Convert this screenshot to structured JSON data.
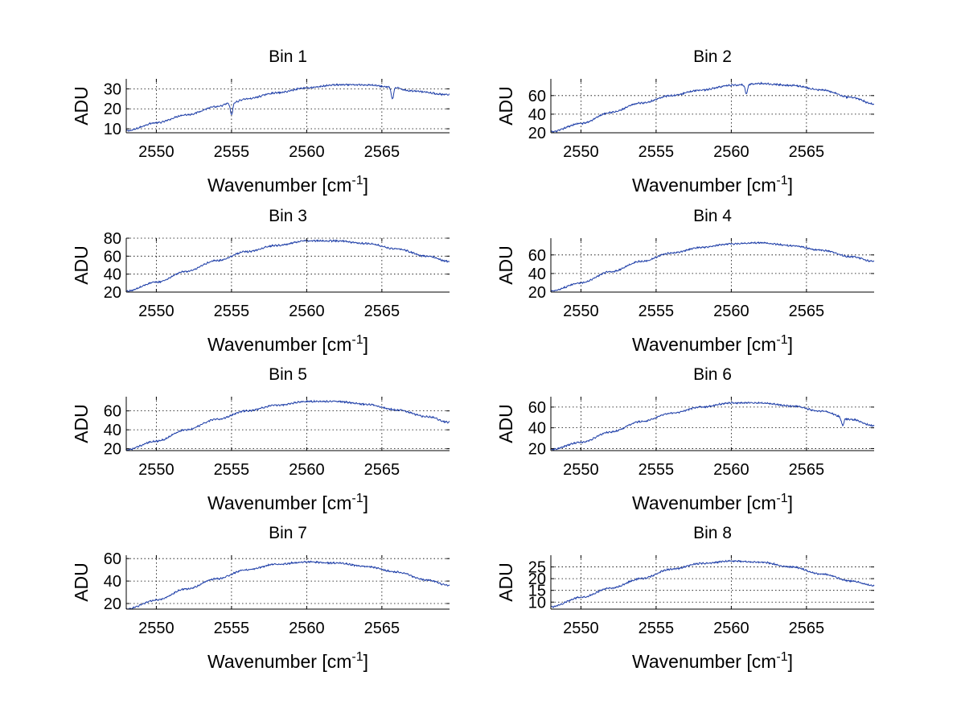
{
  "colors": {
    "line": "#1f3fa8",
    "axis": "#000000",
    "grid": "#000000",
    "background": "#ffffff"
  },
  "chart_data": [
    {
      "type": "line",
      "title": "Bin 1",
      "xlabel": "Wavenumber [cm",
      "xlabel_sup": "-1",
      "xlabel_end": "]",
      "ylabel": "ADU",
      "xlim": [
        2548,
        2569.5
      ],
      "ylim": [
        8,
        35
      ],
      "xticks": [
        2550,
        2555,
        2560,
        2565
      ],
      "yticks": [
        10,
        20,
        30
      ],
      "grid": true,
      "series": [
        {
          "name": "Bin 1",
          "x": [
            2548,
            2550,
            2552,
            2554,
            2555,
            2556,
            2558,
            2560,
            2562,
            2564,
            2565.5,
            2567,
            2569.5
          ],
          "values": [
            9,
            13,
            17,
            21,
            23,
            25,
            28,
            30.5,
            32,
            32,
            31,
            29,
            27
          ]
        }
      ],
      "dips": [
        {
          "x": 2555,
          "depth": 6
        },
        {
          "x": 2565.7,
          "depth": 6
        }
      ]
    },
    {
      "type": "line",
      "title": "Bin 2",
      "xlabel": "Wavenumber [cm",
      "xlabel_sup": "-1",
      "xlabel_end": "]",
      "ylabel": "ADU",
      "xlim": [
        2548,
        2569.5
      ],
      "ylim": [
        20,
        78
      ],
      "xticks": [
        2550,
        2555,
        2560,
        2565
      ],
      "yticks": [
        20,
        40,
        60
      ],
      "grid": true,
      "series": [
        {
          "name": "Bin 2",
          "x": [
            2548,
            2550,
            2552,
            2554,
            2556,
            2558,
            2560,
            2562,
            2564,
            2566,
            2568,
            2569.5
          ],
          "values": [
            21,
            30,
            42,
            52,
            60,
            66,
            71,
            73,
            71,
            66,
            58,
            51
          ]
        }
      ],
      "dips": [
        {
          "x": 2561,
          "depth": 10
        }
      ]
    },
    {
      "type": "line",
      "title": "Bin 3",
      "xlabel": "Wavenumber [cm",
      "xlabel_sup": "-1",
      "xlabel_end": "]",
      "ylabel": "ADU",
      "xlim": [
        2548,
        2569.5
      ],
      "ylim": [
        20,
        80
      ],
      "xticks": [
        2550,
        2555,
        2560,
        2565
      ],
      "yticks": [
        20,
        40,
        60,
        80
      ],
      "grid": true,
      "series": [
        {
          "name": "Bin 3",
          "x": [
            2548,
            2550,
            2552,
            2554,
            2556,
            2558,
            2560,
            2562,
            2564,
            2566,
            2568,
            2569.5
          ],
          "values": [
            21,
            31,
            43,
            55,
            65,
            72,
            77,
            77,
            74,
            68,
            60,
            54
          ]
        }
      ],
      "dips": []
    },
    {
      "type": "line",
      "title": "Bin 4",
      "xlabel": "Wavenumber [cm",
      "xlabel_sup": "-1",
      "xlabel_end": "]",
      "ylabel": "ADU",
      "xlim": [
        2548,
        2569.5
      ],
      "ylim": [
        20,
        78
      ],
      "xticks": [
        2550,
        2555,
        2560,
        2565
      ],
      "yticks": [
        20,
        40,
        60
      ],
      "grid": true,
      "series": [
        {
          "name": "Bin 4",
          "x": [
            2548,
            2550,
            2552,
            2554,
            2556,
            2558,
            2560,
            2562,
            2564,
            2566,
            2568,
            2569.5
          ],
          "values": [
            21,
            30,
            42,
            53,
            62,
            68,
            72,
            73,
            70,
            65,
            58,
            53
          ]
        }
      ],
      "dips": []
    },
    {
      "type": "line",
      "title": "Bin 5",
      "xlabel": "Wavenumber [cm",
      "xlabel_sup": "-1",
      "xlabel_end": "]",
      "ylabel": "ADU",
      "xlim": [
        2548,
        2569.5
      ],
      "ylim": [
        18,
        75
      ],
      "xticks": [
        2550,
        2555,
        2560,
        2565
      ],
      "yticks": [
        20,
        40,
        60
      ],
      "grid": true,
      "series": [
        {
          "name": "Bin 5",
          "x": [
            2548,
            2550,
            2552,
            2554,
            2556,
            2558,
            2560,
            2562,
            2564,
            2566,
            2568,
            2569.5
          ],
          "values": [
            19,
            28,
            40,
            51,
            60,
            66,
            70,
            70,
            67,
            61,
            54,
            48
          ]
        }
      ],
      "dips": []
    },
    {
      "type": "line",
      "title": "Bin 6",
      "xlabel": "Wavenumber [cm",
      "xlabel_sup": "-1",
      "xlabel_end": "]",
      "ylabel": "ADU",
      "xlim": [
        2548,
        2569.5
      ],
      "ylim": [
        18,
        70
      ],
      "xticks": [
        2550,
        2555,
        2560,
        2565
      ],
      "yticks": [
        20,
        40,
        60
      ],
      "grid": true,
      "series": [
        {
          "name": "Bin 6",
          "x": [
            2548,
            2550,
            2552,
            2554,
            2556,
            2558,
            2560,
            2562,
            2564,
            2566,
            2568,
            2569.5
          ],
          "values": [
            19,
            26,
            36,
            46,
            54,
            60,
            64,
            64,
            61,
            56,
            48,
            42
          ]
        }
      ],
      "dips": [
        {
          "x": 2567.4,
          "depth": 7
        }
      ]
    },
    {
      "type": "line",
      "title": "Bin 7",
      "xlabel": "Wavenumber [cm",
      "xlabel_sup": "-1",
      "xlabel_end": "]",
      "ylabel": "ADU",
      "xlim": [
        2548,
        2569.5
      ],
      "ylim": [
        15,
        63
      ],
      "xticks": [
        2550,
        2555,
        2560,
        2565
      ],
      "yticks": [
        20,
        40,
        60
      ],
      "grid": true,
      "series": [
        {
          "name": "Bin 7",
          "x": [
            2548,
            2550,
            2552,
            2554,
            2556,
            2558,
            2560,
            2562,
            2564,
            2566,
            2568,
            2569.5
          ],
          "values": [
            15,
            23,
            33,
            42,
            50,
            55,
            57,
            56,
            53,
            48,
            41,
            36
          ]
        }
      ],
      "dips": []
    },
    {
      "type": "line",
      "title": "Bin 8",
      "xlabel": "Wavenumber [cm",
      "xlabel_sup": "-1",
      "xlabel_end": "]",
      "ylabel": "ADU",
      "xlim": [
        2548,
        2569.5
      ],
      "ylim": [
        7,
        30
      ],
      "xticks": [
        2550,
        2555,
        2560,
        2565
      ],
      "yticks": [
        10,
        15,
        20,
        25
      ],
      "grid": true,
      "series": [
        {
          "name": "Bin 8",
          "x": [
            2548,
            2550,
            2552,
            2554,
            2556,
            2558,
            2560,
            2562,
            2564,
            2566,
            2568,
            2569.5
          ],
          "values": [
            8,
            12,
            16,
            20,
            24,
            26.5,
            27.5,
            27,
            25,
            22,
            19,
            17
          ]
        }
      ],
      "dips": []
    }
  ]
}
